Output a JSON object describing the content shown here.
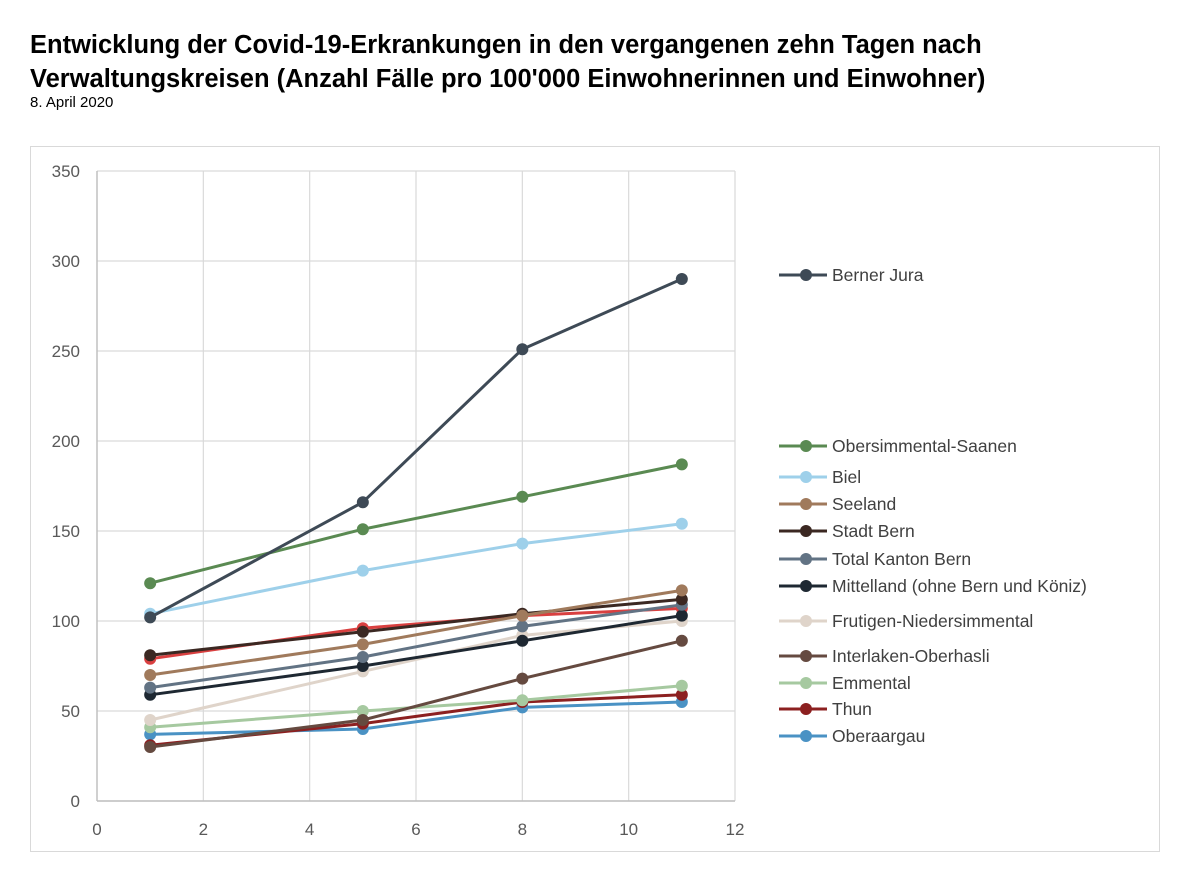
{
  "header": {
    "title": "Entwicklung der Covid-19-Erkrankungen in den vergangenen zehn Tagen nach Verwaltungskreisen (Anzahl Fälle pro 100'000 Einwohnerinnen und Einwohner)",
    "subtitle": "8. April 2020"
  },
  "chart_data": {
    "type": "line",
    "title": "Entwicklung der Covid-19-Erkrankungen in den vergangenen zehn Tagen nach Verwaltungskreisen (Anzahl Fälle pro 100'000 Einwohnerinnen und Einwohner)",
    "subtitle": "8. April 2020",
    "xlabel": "",
    "ylabel": "",
    "xlim": [
      0,
      12
    ],
    "ylim": [
      0,
      350
    ],
    "xticks": [
      0,
      2,
      4,
      6,
      8,
      10,
      12
    ],
    "yticks": [
      0,
      50,
      100,
      150,
      200,
      250,
      300,
      350
    ],
    "grid": true,
    "legend_position": "right",
    "x": [
      1,
      5,
      8,
      11
    ],
    "series": [
      {
        "name": "Berner Jura",
        "color": "#3e4a56",
        "values": [
          102,
          166,
          251,
          290
        ]
      },
      {
        "name": "Obersimmental-Saanen",
        "color": "#5a8a52",
        "values": [
          121,
          151,
          169,
          187
        ]
      },
      {
        "name": "Biel",
        "color": "#9ed0ea",
        "values": [
          104,
          128,
          143,
          154
        ]
      },
      {
        "name": "Seeland",
        "color": "#a07a5c",
        "values": [
          70,
          87,
          103,
          117
        ]
      },
      {
        "name": "Stadt Bern",
        "color": "#3b2822",
        "values": [
          81,
          94,
          104,
          112
        ]
      },
      {
        "name": "Total Kanton Bern",
        "color": "#627384",
        "values": [
          63,
          80,
          97,
          109
        ]
      },
      {
        "name": "Mittelland (ohne Bern und Köniz)",
        "color": "#1e2832",
        "values": [
          59,
          75,
          89,
          103
        ]
      },
      {
        "name": "Frutigen-Niedersimmental",
        "color": "#dfd4ca",
        "values": [
          45,
          72,
          92,
          100
        ]
      },
      {
        "name": "Interlaken-Oberhasli",
        "color": "#654a40",
        "values": [
          30,
          45,
          68,
          89
        ]
      },
      {
        "name": "Emmental",
        "color": "#a6c9a0",
        "values": [
          41,
          50,
          56,
          64
        ]
      },
      {
        "name": "Thun",
        "color": "#8c2020",
        "values": [
          31,
          43,
          55,
          59
        ]
      },
      {
        "name": "Oberaargau",
        "color": "#4a92c4",
        "values": [
          37,
          40,
          52,
          55
        ]
      }
    ],
    "unlabeled_series": [
      {
        "color": "#d94040",
        "values": [
          79,
          96,
          103,
          107
        ]
      }
    ]
  }
}
